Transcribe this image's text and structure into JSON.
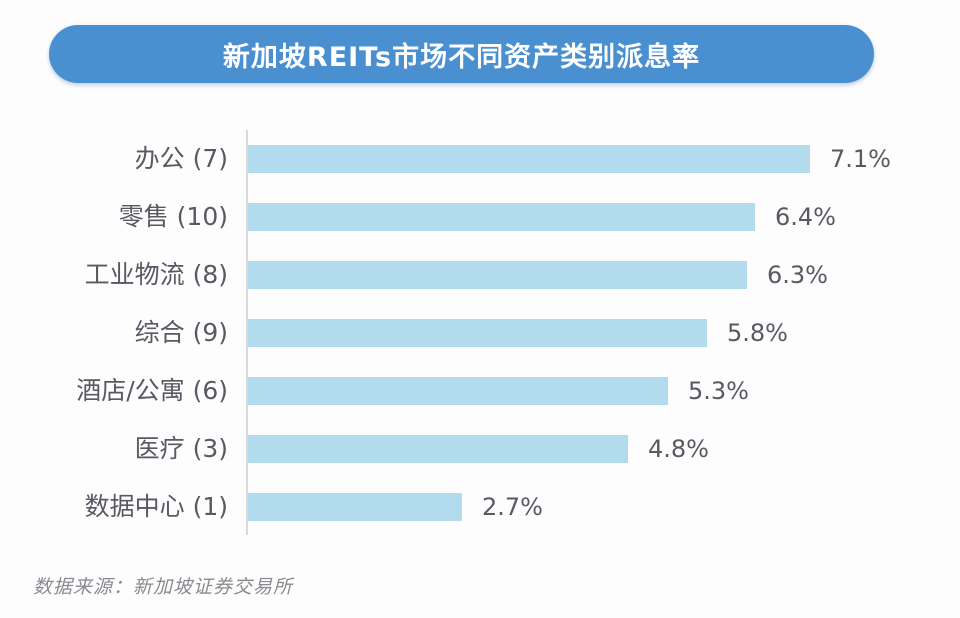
{
  "header": {
    "title": "新加坡REITs市场不同资产类别派息率"
  },
  "footer": {
    "source": "数据来源：新加坡证券交易所"
  },
  "colors": {
    "title_bg": "#4a90d0",
    "bar": "#b3dbee",
    "text": "#595962"
  },
  "rows": [
    {
      "label": "办公 (7)",
      "value": 7.1,
      "value_label": "7.1%"
    },
    {
      "label": "零售 (10)",
      "value": 6.4,
      "value_label": "6.4%"
    },
    {
      "label": "工业物流 (8)",
      "value": 6.3,
      "value_label": "6.3%"
    },
    {
      "label": "综合 (9)",
      "value": 5.8,
      "value_label": "5.8%"
    },
    {
      "label": "酒店/公寓 (6)",
      "value": 5.3,
      "value_label": "5.3%"
    },
    {
      "label": "医疗 (3)",
      "value": 4.8,
      "value_label": "4.8%"
    },
    {
      "label": "数据中心 (1)",
      "value": 2.7,
      "value_label": "2.7%"
    }
  ],
  "chart_data": {
    "type": "bar",
    "orientation": "horizontal",
    "title": "新加坡REITs市场不同资产类别派息率",
    "categories": [
      "办公 (7)",
      "零售 (10)",
      "工业物流 (8)",
      "综合 (9)",
      "酒店/公寓 (6)",
      "医疗 (3)",
      "数据中心 (1)"
    ],
    "values": [
      7.1,
      6.4,
      6.3,
      5.8,
      5.3,
      4.8,
      2.7
    ],
    "value_labels": [
      "7.1%",
      "6.4%",
      "6.3%",
      "5.8%",
      "5.3%",
      "4.8%",
      "2.7%"
    ],
    "xlabel": "",
    "ylabel": "",
    "unit": "%",
    "grid": false,
    "legend": null,
    "annotations": [
      "数据来源：新加坡证券交易所"
    ]
  }
}
